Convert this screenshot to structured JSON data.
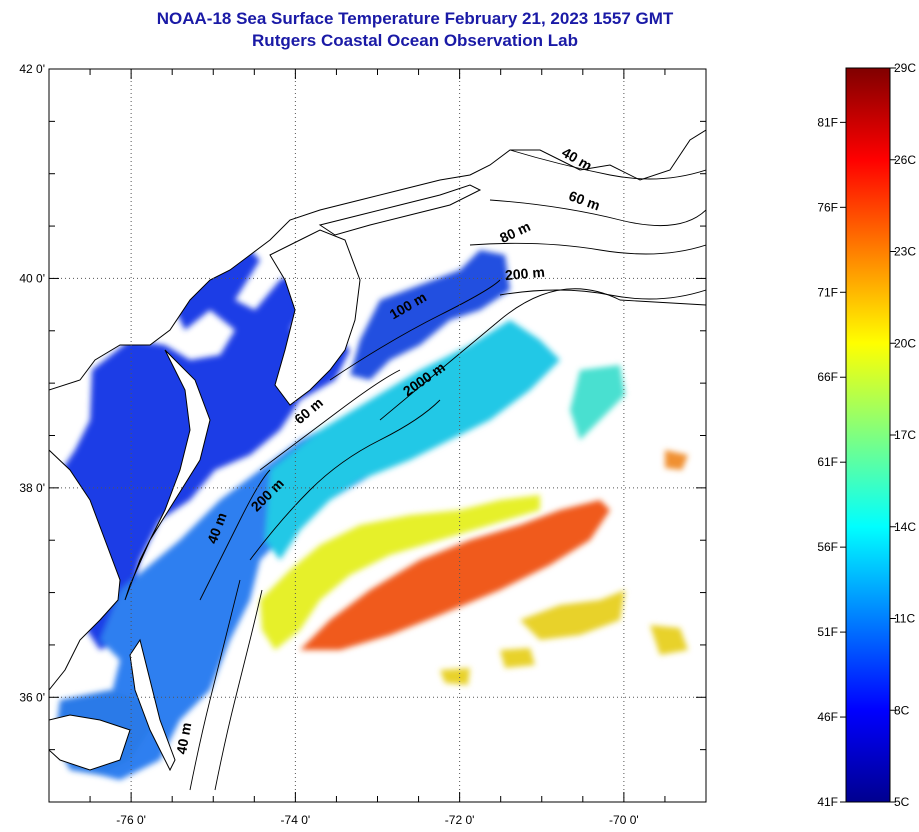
{
  "title": {
    "line1": "NOAA-18 Sea Surface Temperature February 21, 2023 1557 GMT",
    "line2": "Rutgers Coastal Ocean Observation Lab"
  },
  "map": {
    "lat_labels": [
      "42 0'",
      "40 0'",
      "38 0'",
      "36 0'"
    ],
    "lon_labels": [
      "-76 0'",
      "-74 0'",
      "-72 0'",
      "-70 0'"
    ],
    "lat_range": [
      35.0,
      42.0
    ],
    "lon_range": [
      -77.0,
      -69.0
    ],
    "grid": "dotted",
    "contour_labels": [
      {
        "text": "40 m",
        "lat": 41.1,
        "lon": -70.6
      },
      {
        "text": "60 m",
        "lat": 40.7,
        "lon": -70.5
      },
      {
        "text": "80 m",
        "lat": 40.4,
        "lon": -71.3
      },
      {
        "text": "200 m",
        "lat": 40.0,
        "lon": -71.2
      },
      {
        "text": "100 m",
        "lat": 39.7,
        "lon": -72.6
      },
      {
        "text": "2000 m",
        "lat": 39.0,
        "lon": -72.4
      },
      {
        "text": "60 m",
        "lat": 38.7,
        "lon": -73.8
      },
      {
        "text": "200 m",
        "lat": 37.9,
        "lon": -74.3
      },
      {
        "text": "40 m",
        "lat": 37.6,
        "lon": -74.9
      },
      {
        "text": "40 m",
        "lat": 35.6,
        "lon": -75.3
      }
    ]
  },
  "colorbar": {
    "fahrenheit_labels": [
      "81F",
      "76F",
      "71F",
      "66F",
      "61F",
      "56F",
      "51F",
      "46F",
      "41F"
    ],
    "celsius_labels": [
      "29C",
      "26C",
      "23C",
      "20C",
      "17C",
      "14C",
      "11C",
      "8C",
      "5C"
    ],
    "range_celsius": [
      5,
      29
    ],
    "colormap": "jet"
  },
  "colors": {
    "title": "#1a1aa6",
    "land": "#ffffff",
    "cold": "#1c3ce6",
    "cool": "#2a8ff0",
    "cyan": "#20d0e8",
    "yellow": "#f0f020",
    "orange": "#f07020",
    "warm": "#f03c14"
  }
}
